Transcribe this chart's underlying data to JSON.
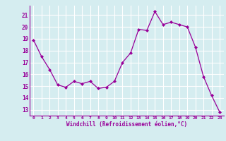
{
  "x": [
    0,
    1,
    2,
    3,
    4,
    5,
    6,
    7,
    8,
    9,
    10,
    11,
    12,
    13,
    14,
    15,
    16,
    17,
    18,
    19,
    20,
    21,
    22,
    23
  ],
  "y": [
    18.9,
    17.5,
    16.4,
    15.1,
    14.9,
    15.4,
    15.2,
    15.4,
    14.8,
    14.9,
    15.4,
    17.0,
    17.8,
    19.8,
    19.7,
    21.3,
    20.2,
    20.4,
    20.2,
    20.0,
    18.3,
    15.8,
    14.2,
    12.8
  ],
  "line_color": "#990099",
  "marker": "D",
  "marker_size": 2.0,
  "bg_color": "#d5edf0",
  "grid_color": "#ffffff",
  "xlabel": "Windchill (Refroidissement éolien,°C)",
  "xlabel_color": "#990099",
  "tick_color": "#990099",
  "ylim": [
    12.5,
    21.8
  ],
  "xlim": [
    -0.5,
    23.5
  ],
  "yticks": [
    13,
    14,
    15,
    16,
    17,
    18,
    19,
    20,
    21
  ],
  "xticks": [
    0,
    1,
    2,
    3,
    4,
    5,
    6,
    7,
    8,
    9,
    10,
    11,
    12,
    13,
    14,
    15,
    16,
    17,
    18,
    19,
    20,
    21,
    22,
    23
  ],
  "xtick_labels": [
    "0",
    "1",
    "2",
    "3",
    "4",
    "5",
    "6",
    "7",
    "8",
    "9",
    "10",
    "11",
    "12",
    "13",
    "14",
    "15",
    "16",
    "17",
    "18",
    "19",
    "20",
    "21",
    "22",
    "23"
  ],
  "ytick_labels": [
    "13",
    "14",
    "15",
    "16",
    "17",
    "18",
    "19",
    "20",
    "21"
  ],
  "spine_color": "#990099"
}
